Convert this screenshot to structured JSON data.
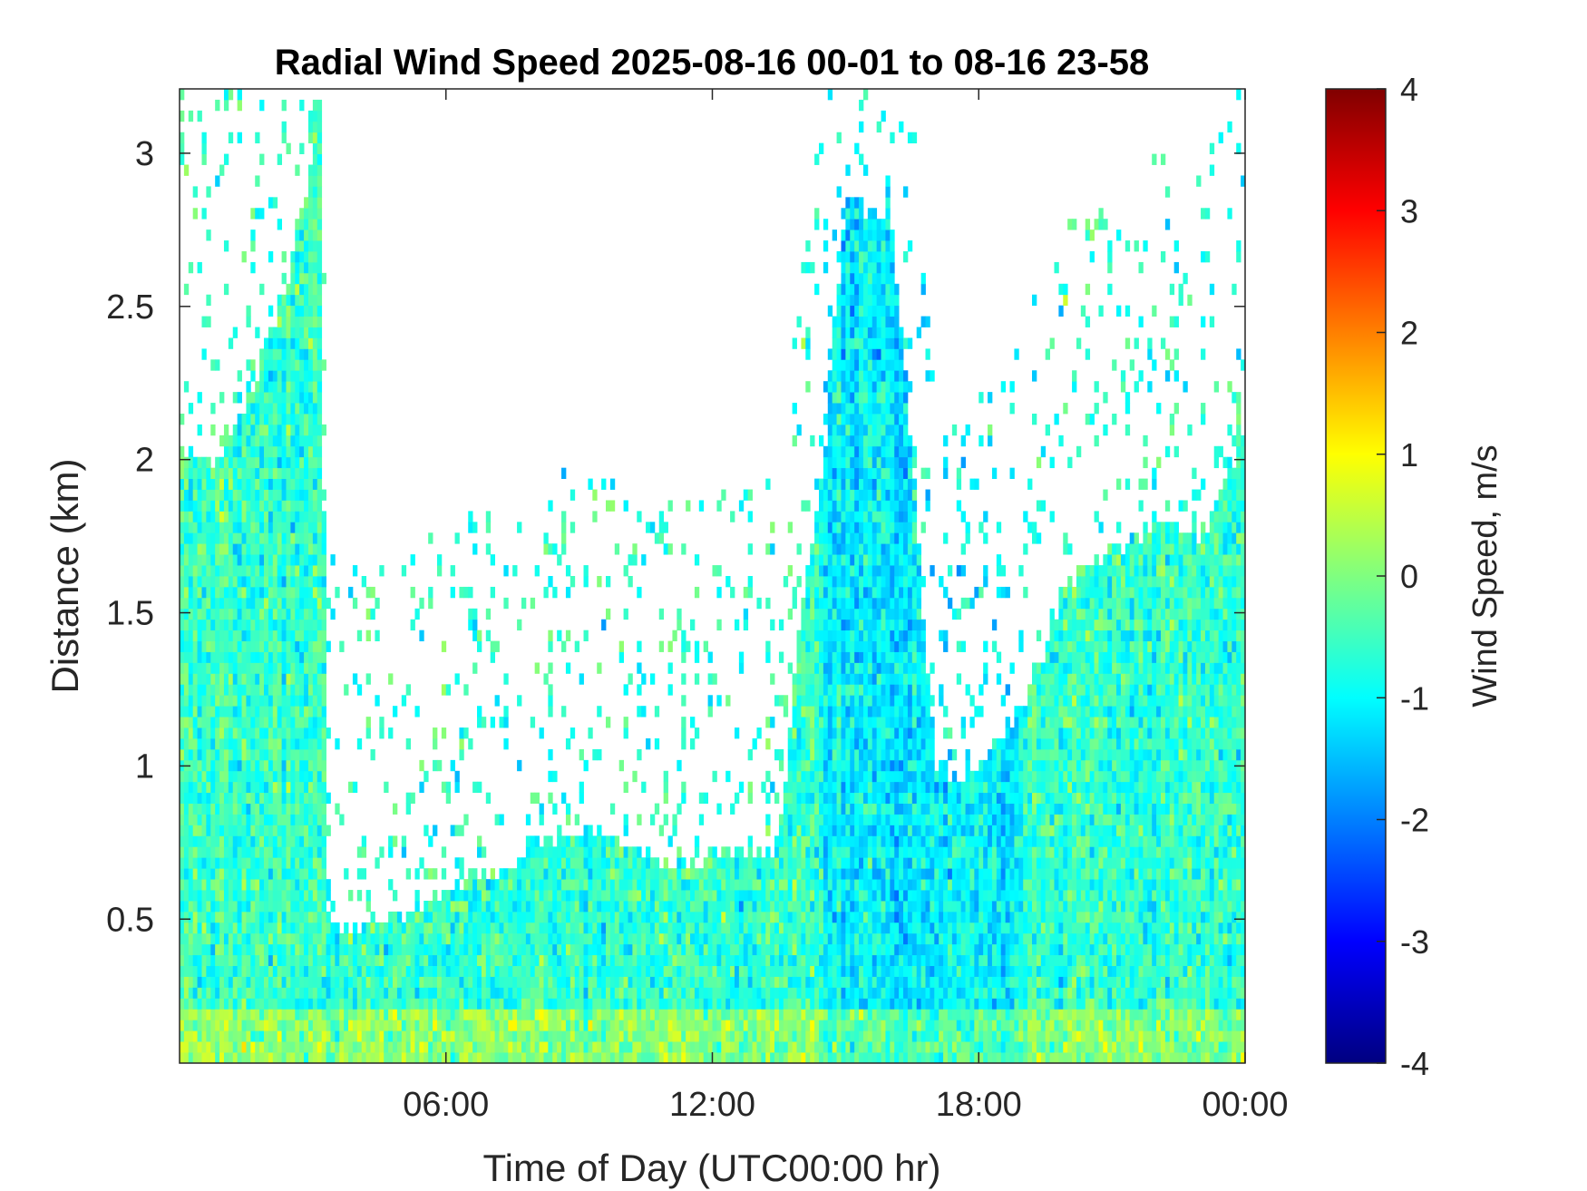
{
  "chart_data": {
    "type": "heatmap",
    "title": "Radial Wind Speed 2025-08-16 00-01 to 08-16 23-58",
    "xlabel": "Time of Day (UTC00:00 hr)",
    "ylabel": "Distance (km)",
    "colorbar_label": "Wind Speed, m/s",
    "xlim": [
      0,
      24
    ],
    "ylim": [
      0.03,
      3.21
    ],
    "clim": [
      -4,
      4
    ],
    "colormap": "jet",
    "x_ticks": [
      {
        "value": 6,
        "label": "06:00"
      },
      {
        "value": 12,
        "label": "12:00"
      },
      {
        "value": 18,
        "label": "18:00"
      },
      {
        "value": 24,
        "label": "00:00"
      }
    ],
    "y_ticks": [
      {
        "value": 0.5,
        "label": "0.5"
      },
      {
        "value": 1,
        "label": "1"
      },
      {
        "value": 1.5,
        "label": "1.5"
      },
      {
        "value": 2,
        "label": "2"
      },
      {
        "value": 2.5,
        "label": "2.5"
      },
      {
        "value": 3,
        "label": "3"
      }
    ],
    "colorbar_ticks": [
      {
        "value": 4,
        "label": "4"
      },
      {
        "value": 3,
        "label": "3"
      },
      {
        "value": 2,
        "label": "2"
      },
      {
        "value": 1,
        "label": "1"
      },
      {
        "value": 0,
        "label": "0"
      },
      {
        "value": -1,
        "label": "-1"
      },
      {
        "value": -2,
        "label": "-2"
      },
      {
        "value": -3,
        "label": "-3"
      },
      {
        "value": -4,
        "label": "-4"
      }
    ],
    "data_top_km": {
      "hours": [
        0,
        0.6,
        0.7,
        1.5,
        2.5,
        3.2,
        3.3,
        3.6,
        4.5,
        5,
        6,
        7,
        7.5,
        8,
        8.5,
        9,
        9.5,
        10,
        11,
        12,
        13,
        13.5,
        14,
        14.5,
        15,
        16,
        16.5,
        17,
        17.5,
        18,
        18.5,
        19,
        20,
        21,
        22,
        23,
        24
      ],
      "top": [
        2.05,
        2.0,
        1.95,
        2.2,
        2.6,
        3.2,
        0.47,
        0.47,
        0.5,
        0.52,
        0.58,
        0.65,
        0.7,
        0.74,
        0.78,
        0.78,
        0.8,
        0.75,
        0.68,
        0.7,
        0.72,
        0.76,
        1.5,
        2.0,
        2.85,
        2.8,
        2.0,
        1.0,
        0.95,
        0.98,
        1.1,
        1.2,
        1.6,
        1.7,
        1.8,
        1.75,
        2.1
      ]
    }
  }
}
